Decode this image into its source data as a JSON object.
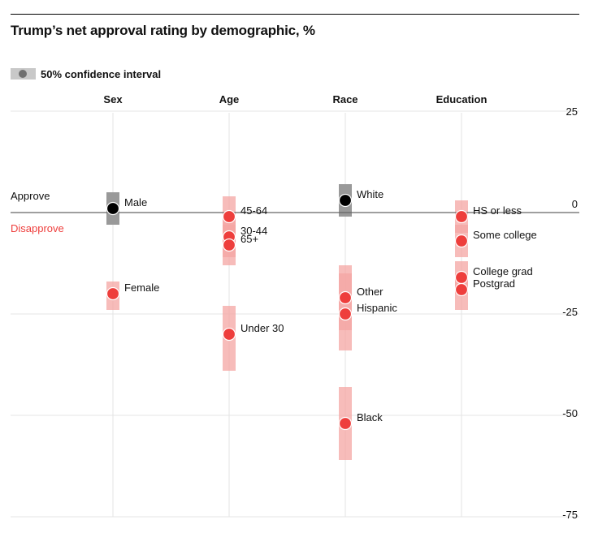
{
  "chart_data": {
    "type": "scatter",
    "title": "Trump’s net approval rating by demographic, %",
    "legend": {
      "label": "50% confidence interval",
      "placement": "top-left"
    },
    "zero_labels": {
      "above": "Approve",
      "below": "Disapprove"
    },
    "y_axis": {
      "ticks": [
        25,
        0,
        -25,
        -50,
        -75
      ],
      "ylim": [
        -75,
        25
      ],
      "side": "right"
    },
    "colors": {
      "positive": "#000000",
      "negative": "#ee3e3c",
      "interval_positive": "#999999",
      "interval_negative": "#f4a5a3",
      "interval_overlap": "#ef7776"
    },
    "groups": [
      {
        "name": "Sex",
        "points": [
          {
            "label": "Male",
            "value": 1,
            "low": -3,
            "high": 5
          },
          {
            "label": "Female",
            "value": -20,
            "low": -24,
            "high": -17
          }
        ]
      },
      {
        "name": "Age",
        "points": [
          {
            "label": "45-64",
            "value": -1,
            "low": -8,
            "high": 4
          },
          {
            "label": "30-44",
            "value": -6,
            "low": -11,
            "high": 0
          },
          {
            "label": "65+",
            "value": -8,
            "low": -13,
            "high": -3
          },
          {
            "label": "Under 30",
            "value": -30,
            "low": -39,
            "high": -23
          }
        ]
      },
      {
        "name": "Race",
        "points": [
          {
            "label": "White",
            "value": 3,
            "low": -1,
            "high": 7
          },
          {
            "label": "Other",
            "value": -21,
            "low": -29,
            "high": -13
          },
          {
            "label": "Hispanic",
            "value": -25,
            "low": -34,
            "high": -15
          },
          {
            "label": "Black",
            "value": -52,
            "low": -61,
            "high": -43
          }
        ]
      },
      {
        "name": "Education",
        "points": [
          {
            "label": "HS or less",
            "value": -1,
            "low": -5,
            "high": 3
          },
          {
            "label": "Some college",
            "value": -7,
            "low": -11,
            "high": -3
          },
          {
            "label": "College grad",
            "value": -16,
            "low": -20,
            "high": -12
          },
          {
            "label": "Postgrad",
            "value": -19,
            "low": -24,
            "high": -15
          }
        ]
      }
    ]
  }
}
